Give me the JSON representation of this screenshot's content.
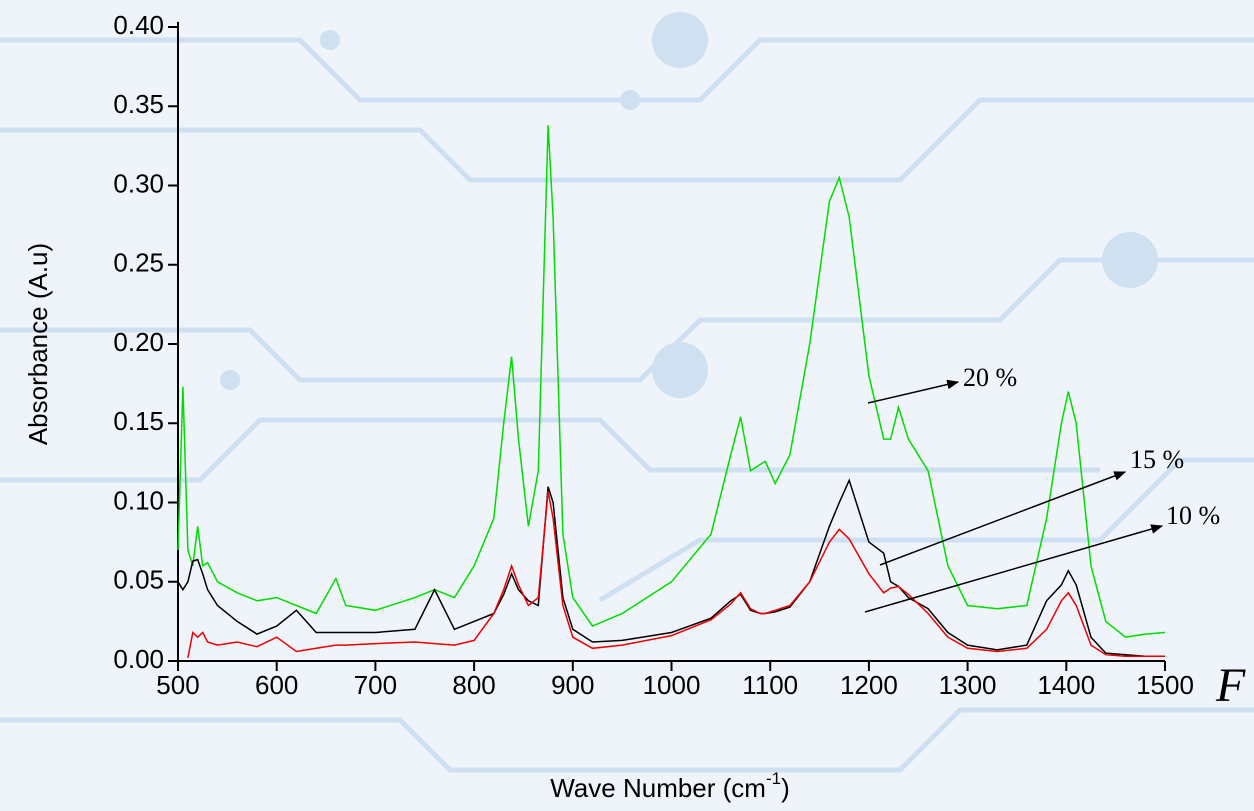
{
  "chart_data": {
    "type": "line",
    "ylabel": "Absorbance (A.u)",
    "xlabel": {
      "text": "Wave Number (cm",
      "sup": "-1",
      "end": ")"
    },
    "annotation": "F",
    "xlim": [
      500,
      1500
    ],
    "ylim": [
      0,
      0.4
    ],
    "xticks": [
      500,
      600,
      700,
      800,
      900,
      1000,
      1100,
      1200,
      1300,
      1400,
      1500
    ],
    "yticks": [
      {
        "value": 0,
        "label": "0.00"
      },
      {
        "value": 0.05,
        "label": "0.05"
      },
      {
        "value": 0.1,
        "label": "0.10"
      },
      {
        "value": 0.15,
        "label": "0.15"
      },
      {
        "value": 0.2,
        "label": "0.20"
      },
      {
        "value": 0.25,
        "label": "0.25"
      },
      {
        "value": 0.3,
        "label": "0.30"
      },
      {
        "value": 0.35,
        "label": "0.35"
      },
      {
        "value": 0.4,
        "label": "0.40"
      }
    ],
    "x": [
      500,
      505,
      510,
      515,
      520,
      525,
      530,
      540,
      560,
      580,
      600,
      620,
      640,
      660,
      670,
      700,
      740,
      760,
      780,
      800,
      820,
      830,
      838,
      845,
      855,
      865,
      875,
      880,
      890,
      900,
      920,
      950,
      1000,
      1040,
      1060,
      1070,
      1080,
      1090,
      1095,
      1105,
      1120,
      1140,
      1160,
      1170,
      1180,
      1200,
      1215,
      1222,
      1230,
      1240,
      1260,
      1280,
      1300,
      1330,
      1360,
      1380,
      1395,
      1402,
      1410,
      1425,
      1440,
      1460,
      1480,
      1500
    ],
    "series": [
      {
        "name": "20 %",
        "color": "#00dd00",
        "values": [
          0.07,
          0.173,
          0.07,
          0.06,
          0.085,
          0.06,
          0.062,
          0.05,
          0.043,
          0.038,
          0.04,
          0.035,
          0.03,
          0.052,
          0.035,
          0.032,
          0.04,
          0.045,
          0.04,
          0.06,
          0.09,
          0.15,
          0.192,
          0.14,
          0.085,
          0.12,
          0.338,
          0.28,
          0.08,
          0.04,
          0.022,
          0.03,
          0.05,
          0.08,
          0.13,
          0.154,
          0.12,
          0.124,
          0.126,
          0.112,
          0.13,
          0.2,
          0.29,
          0.305,
          0.28,
          0.18,
          0.14,
          0.14,
          0.16,
          0.14,
          0.12,
          0.06,
          0.035,
          0.033,
          0.035,
          0.09,
          0.15,
          0.17,
          0.15,
          0.06,
          0.025,
          0.015,
          0.017,
          0.018
        ]
      },
      {
        "name": "15 %",
        "color": "#000000",
        "values": [
          0.05,
          0.045,
          0.05,
          0.063,
          0.064,
          0.055,
          0.045,
          0.035,
          0.025,
          0.017,
          0.022,
          0.032,
          0.018,
          0.018,
          0.018,
          0.018,
          0.02,
          0.045,
          0.02,
          0.025,
          0.03,
          0.042,
          0.055,
          0.045,
          0.038,
          0.035,
          0.11,
          0.1,
          0.04,
          0.02,
          0.012,
          0.013,
          0.018,
          0.027,
          0.038,
          0.042,
          0.032,
          0.03,
          0.03,
          0.031,
          0.034,
          0.05,
          0.085,
          0.1,
          0.114,
          0.075,
          0.068,
          0.05,
          0.047,
          0.04,
          0.033,
          0.018,
          0.01,
          0.007,
          0.01,
          0.038,
          0.048,
          0.057,
          0.048,
          0.015,
          0.005,
          0.004,
          0.003,
          0.003
        ]
      },
      {
        "name": "10 %",
        "color": "#ee0000",
        "values": [
          null,
          null,
          0.002,
          0.018,
          0.015,
          0.018,
          0.012,
          0.01,
          0.012,
          0.009,
          0.015,
          0.006,
          0.008,
          0.01,
          0.01,
          0.011,
          0.012,
          0.011,
          0.01,
          0.013,
          0.03,
          0.045,
          0.06,
          0.048,
          0.035,
          0.04,
          0.107,
          0.09,
          0.035,
          0.015,
          0.008,
          0.01,
          0.016,
          0.026,
          0.036,
          0.043,
          0.033,
          0.03,
          0.03,
          0.032,
          0.035,
          0.05,
          0.075,
          0.083,
          0.077,
          0.055,
          0.043,
          0.046,
          0.047,
          0.042,
          0.03,
          0.015,
          0.008,
          0.006,
          0.008,
          0.02,
          0.038,
          0.043,
          0.035,
          0.01,
          0.004,
          0.003,
          0.003,
          0.003
        ]
      }
    ]
  }
}
